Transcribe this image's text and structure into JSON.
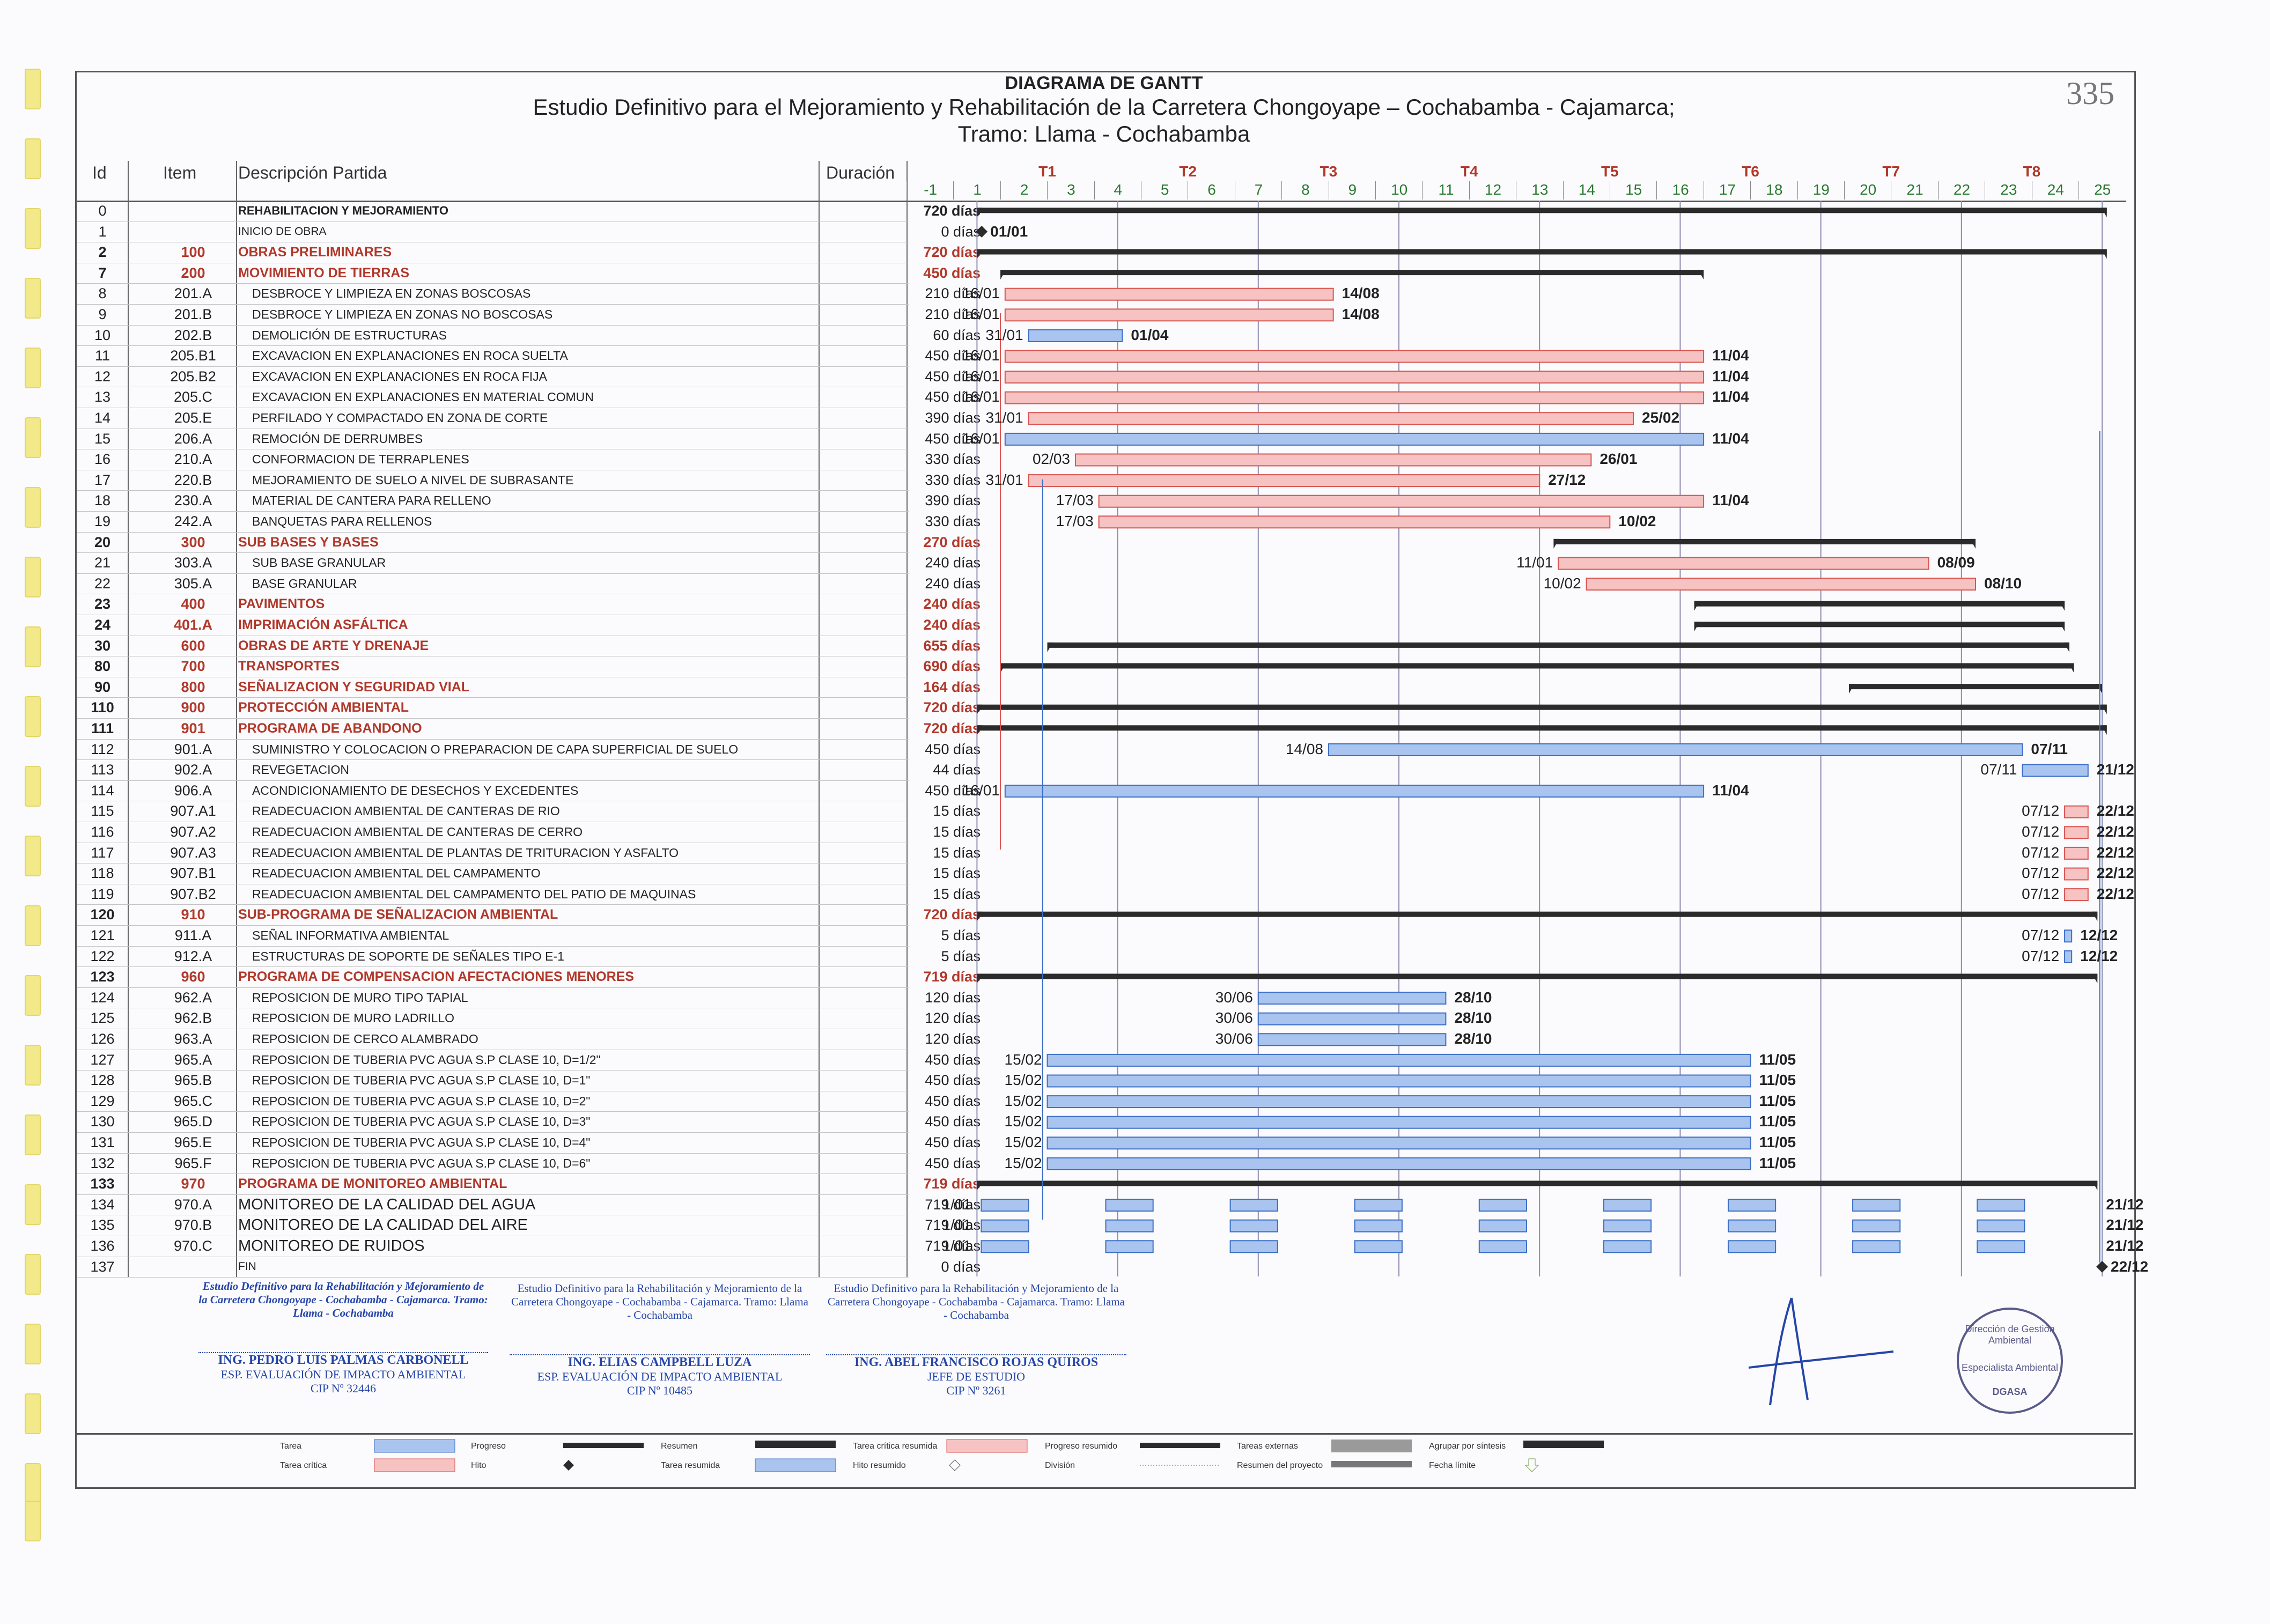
{
  "header": {
    "title": "DIAGRAMA DE GANTT",
    "subtitle": "Estudio Definitivo para el Mejoramiento y Rehabilitación de la Carretera Chongoyape – Cochabamba - Cajamarca;",
    "tramo": "Tramo: Llama - Cochabamba",
    "page_number": "335"
  },
  "columns": {
    "id": "Id",
    "item": "Item",
    "desc": "Descripción Partida",
    "dur": "Duración"
  },
  "quarters": [
    "T1",
    "T2",
    "T3",
    "T4",
    "T5",
    "T6",
    "T7",
    "T8"
  ],
  "months": [
    "-1",
    "1",
    "2",
    "3",
    "4",
    "5",
    "6",
    "7",
    "8",
    "9",
    "10",
    "11",
    "12",
    "13",
    "14",
    "15",
    "16",
    "17",
    "18",
    "19",
    "20",
    "21",
    "22",
    "23",
    "24",
    "25"
  ],
  "rows": [
    {
      "id": "0",
      "item": "",
      "desc": "REHABILITACION Y MEJORAMIENTO",
      "dur": "720 días",
      "kind": "phase"
    },
    {
      "id": "1",
      "item": "",
      "desc": "INICIO DE OBRA",
      "dur": "0 días",
      "kind": "small"
    },
    {
      "id": "2",
      "item": "100",
      "desc": "OBRAS PRELIMINARES",
      "dur": "720 días",
      "kind": "sum"
    },
    {
      "id": "7",
      "item": "200",
      "desc": "MOVIMIENTO DE TIERRAS",
      "dur": "450 días",
      "kind": "sum"
    },
    {
      "id": "8",
      "item": "201.A",
      "desc": "DESBROCE Y LIMPIEZA EN ZONAS BOSCOSAS",
      "dur": "210 días",
      "kind": "task"
    },
    {
      "id": "9",
      "item": "201.B",
      "desc": "DESBROCE Y LIMPIEZA EN ZONAS NO BOSCOSAS",
      "dur": "210 días",
      "kind": "task"
    },
    {
      "id": "10",
      "item": "202.B",
      "desc": "DEMOLICIÓN DE ESTRUCTURAS",
      "dur": "60 días",
      "kind": "task"
    },
    {
      "id": "11",
      "item": "205.B1",
      "desc": "EXCAVACION EN EXPLANACIONES EN ROCA SUELTA",
      "dur": "450 días",
      "kind": "task"
    },
    {
      "id": "12",
      "item": "205.B2",
      "desc": "EXCAVACION EN EXPLANACIONES EN ROCA FIJA",
      "dur": "450 días",
      "kind": "task"
    },
    {
      "id": "13",
      "item": "205.C",
      "desc": "EXCAVACION EN EXPLANACIONES EN MATERIAL COMUN",
      "dur": "450 días",
      "kind": "task"
    },
    {
      "id": "14",
      "item": "205.E",
      "desc": "PERFILADO Y COMPACTADO EN ZONA DE CORTE",
      "dur": "390 días",
      "kind": "task"
    },
    {
      "id": "15",
      "item": "206.A",
      "desc": "REMOCIÓN DE DERRUMBES",
      "dur": "450 días",
      "kind": "task"
    },
    {
      "id": "16",
      "item": "210.A",
      "desc": "CONFORMACION DE TERRAPLENES",
      "dur": "330 días",
      "kind": "task"
    },
    {
      "id": "17",
      "item": "220.B",
      "desc": "MEJORAMIENTO DE SUELO A NIVEL DE SUBRASANTE",
      "dur": "330 días",
      "kind": "task"
    },
    {
      "id": "18",
      "item": "230.A",
      "desc": "MATERIAL DE CANTERA PARA RELLENO",
      "dur": "390 días",
      "kind": "task"
    },
    {
      "id": "19",
      "item": "242.A",
      "desc": "BANQUETAS PARA RELLENOS",
      "dur": "330 días",
      "kind": "task"
    },
    {
      "id": "20",
      "item": "300",
      "desc": "SUB BASES Y BASES",
      "dur": "270 días",
      "kind": "sum"
    },
    {
      "id": "21",
      "item": "303.A",
      "desc": "SUB BASE GRANULAR",
      "dur": "240 días",
      "kind": "task"
    },
    {
      "id": "22",
      "item": "305.A",
      "desc": "BASE GRANULAR",
      "dur": "240 días",
      "kind": "task"
    },
    {
      "id": "23",
      "item": "400",
      "desc": "PAVIMENTOS",
      "dur": "240 días",
      "kind": "sum"
    },
    {
      "id": "24",
      "item": "401.A",
      "desc": "IMPRIMACIÓN ASFÁLTICA",
      "dur": "240 días",
      "kind": "sum"
    },
    {
      "id": "30",
      "item": "600",
      "desc": "OBRAS DE ARTE Y DRENAJE",
      "dur": "655 días",
      "kind": "sum"
    },
    {
      "id": "80",
      "item": "700",
      "desc": "TRANSPORTES",
      "dur": "690 días",
      "kind": "sum"
    },
    {
      "id": "90",
      "item": "800",
      "desc": "SEÑALIZACION Y SEGURIDAD VIAL",
      "dur": "164 días",
      "kind": "sum"
    },
    {
      "id": "110",
      "item": "900",
      "desc": "PROTECCIÓN AMBIENTAL",
      "dur": "720 días",
      "kind": "sum"
    },
    {
      "id": "111",
      "item": "901",
      "desc": "PROGRAMA DE ABANDONO",
      "dur": "720 días",
      "kind": "sum"
    },
    {
      "id": "112",
      "item": "901.A",
      "desc": "SUMINISTRO Y COLOCACION O PREPARACION DE CAPA SUPERFICIAL DE SUELO",
      "dur": "450 días",
      "kind": "task"
    },
    {
      "id": "113",
      "item": "902.A",
      "desc": "REVEGETACION",
      "dur": "44 días",
      "kind": "task"
    },
    {
      "id": "114",
      "item": "906.A",
      "desc": "ACONDICIONAMIENTO DE DESECHOS Y EXCEDENTES",
      "dur": "450 días",
      "kind": "task"
    },
    {
      "id": "115",
      "item": "907.A1",
      "desc": "READECUACION AMBIENTAL DE CANTERAS DE RIO",
      "dur": "15 días",
      "kind": "task"
    },
    {
      "id": "116",
      "item": "907.A2",
      "desc": "READECUACION AMBIENTAL DE CANTERAS DE CERRO",
      "dur": "15 días",
      "kind": "task"
    },
    {
      "id": "117",
      "item": "907.A3",
      "desc": "READECUACION AMBIENTAL DE PLANTAS DE TRITURACION Y ASFALTO",
      "dur": "15 días",
      "kind": "task"
    },
    {
      "id": "118",
      "item": "907.B1",
      "desc": "READECUACION AMBIENTAL DEL CAMPAMENTO",
      "dur": "15 días",
      "kind": "task"
    },
    {
      "id": "119",
      "item": "907.B2",
      "desc": "READECUACION AMBIENTAL DEL CAMPAMENTO DEL PATIO DE MAQUINAS",
      "dur": "15 días",
      "kind": "task"
    },
    {
      "id": "120",
      "item": "910",
      "desc": "SUB-PROGRAMA DE SEÑALIZACION AMBIENTAL",
      "dur": "720 días",
      "kind": "sum"
    },
    {
      "id": "121",
      "item": "911.A",
      "desc": "SEÑAL INFORMATIVA AMBIENTAL",
      "dur": "5 días",
      "kind": "task"
    },
    {
      "id": "122",
      "item": "912.A",
      "desc": "ESTRUCTURAS DE SOPORTE DE SEÑALES TIPO E-1",
      "dur": "5 días",
      "kind": "task"
    },
    {
      "id": "123",
      "item": "960",
      "desc": "PROGRAMA DE COMPENSACION AFECTACIONES MENORES",
      "dur": "719 días",
      "kind": "sum"
    },
    {
      "id": "124",
      "item": "962.A",
      "desc": "REPOSICION DE MURO TIPO TAPIAL",
      "dur": "120 días",
      "kind": "task"
    },
    {
      "id": "125",
      "item": "962.B",
      "desc": "REPOSICION DE MURO LADRILLO",
      "dur": "120 días",
      "kind": "task"
    },
    {
      "id": "126",
      "item": "963.A",
      "desc": "REPOSICION DE CERCO ALAMBRADO",
      "dur": "120 días",
      "kind": "task"
    },
    {
      "id": "127",
      "item": "965.A",
      "desc": "REPOSICION DE TUBERIA PVC AGUA S.P CLASE 10, D=1/2\"",
      "dur": "450 días",
      "kind": "task"
    },
    {
      "id": "128",
      "item": "965.B",
      "desc": "REPOSICION DE TUBERIA PVC AGUA S.P CLASE 10, D=1\"",
      "dur": "450 días",
      "kind": "task"
    },
    {
      "id": "129",
      "item": "965.C",
      "desc": "REPOSICION DE TUBERIA PVC AGUA S.P CLASE 10, D=2\"",
      "dur": "450 días",
      "kind": "task"
    },
    {
      "id": "130",
      "item": "965.D",
      "desc": "REPOSICION DE TUBERIA PVC AGUA S.P CLASE 10, D=3\"",
      "dur": "450 días",
      "kind": "task"
    },
    {
      "id": "131",
      "item": "965.E",
      "desc": "REPOSICION DE TUBERIA PVC AGUA S.P CLASE 10, D=4\"",
      "dur": "450 días",
      "kind": "task"
    },
    {
      "id": "132",
      "item": "965.F",
      "desc": "REPOSICION DE TUBERIA PVC AGUA S.P CLASE 10, D=6\"",
      "dur": "450 días",
      "kind": "task"
    },
    {
      "id": "133",
      "item": "970",
      "desc": "PROGRAMA DE MONITOREO AMBIENTAL",
      "dur": "719 días",
      "kind": "sum"
    },
    {
      "id": "134",
      "item": "970.A",
      "desc": "MONITOREO DE LA CALIDAD DEL AGUA",
      "dur": "719 días",
      "kind": "big"
    },
    {
      "id": "135",
      "item": "970.B",
      "desc": "MONITOREO DE LA CALIDAD DEL AIRE",
      "dur": "719 días",
      "kind": "big"
    },
    {
      "id": "136",
      "item": "970.C",
      "desc": "MONITOREO DE RUIDOS",
      "dur": "719 días",
      "kind": "big"
    },
    {
      "id": "137",
      "item": "",
      "desc": "FIN",
      "dur": "0 días",
      "kind": "small"
    }
  ],
  "bars": [
    {
      "row": 0,
      "type": "summary",
      "start": 0,
      "end": 24.1
    },
    {
      "row": 1,
      "type": "milestone",
      "start": 0.1,
      "after": "01/01"
    },
    {
      "row": 2,
      "type": "summary",
      "start": 0,
      "end": 24.1
    },
    {
      "row": 3,
      "type": "summary",
      "start": 0.5,
      "end": 15.5
    },
    {
      "row": 4,
      "type": "crit",
      "start": 0.6,
      "end": 7.6,
      "before": "16/01",
      "after": "14/08"
    },
    {
      "row": 5,
      "type": "crit",
      "start": 0.6,
      "end": 7.6,
      "before": "16/01",
      "after": "14/08"
    },
    {
      "row": 6,
      "type": "task",
      "start": 1.1,
      "end": 3.1,
      "before": "31/01",
      "after": "01/04"
    },
    {
      "row": 7,
      "type": "crit",
      "start": 0.6,
      "end": 15.5,
      "before": "16/01",
      "after": "11/04"
    },
    {
      "row": 8,
      "type": "crit",
      "start": 0.6,
      "end": 15.5,
      "before": "16/01",
      "after": "11/04"
    },
    {
      "row": 9,
      "type": "crit",
      "start": 0.6,
      "end": 15.5,
      "before": "16/01",
      "after": "11/04"
    },
    {
      "row": 10,
      "type": "crit",
      "start": 1.1,
      "end": 14.0,
      "before": "31/01",
      "after": "25/02"
    },
    {
      "row": 11,
      "type": "task",
      "start": 0.6,
      "end": 15.5,
      "before": "16/01",
      "after": "11/04"
    },
    {
      "row": 12,
      "type": "crit",
      "start": 2.1,
      "end": 13.1,
      "before": "02/03",
      "after": "26/01"
    },
    {
      "row": 13,
      "type": "crit",
      "start": 1.1,
      "end": 12.0,
      "before": "31/01",
      "after": "27/12"
    },
    {
      "row": 14,
      "type": "crit",
      "start": 2.6,
      "end": 15.5,
      "before": "17/03",
      "after": "11/04"
    },
    {
      "row": 15,
      "type": "crit",
      "start": 2.6,
      "end": 13.5,
      "before": "17/03",
      "after": "10/02"
    },
    {
      "row": 16,
      "type": "summary",
      "start": 12.3,
      "end": 21.3
    },
    {
      "row": 17,
      "type": "crit",
      "start": 12.4,
      "end": 20.3,
      "before": "11/01",
      "after": "08/09"
    },
    {
      "row": 18,
      "type": "crit",
      "start": 13.0,
      "end": 21.3,
      "before": "10/02",
      "after": "08/10"
    },
    {
      "row": 19,
      "type": "summary",
      "start": 15.3,
      "end": 23.2
    },
    {
      "row": 20,
      "type": "summary",
      "start": 15.3,
      "end": 23.2
    },
    {
      "row": 21,
      "type": "summary",
      "start": 1.5,
      "end": 23.3
    },
    {
      "row": 22,
      "type": "summary",
      "start": 0.5,
      "end": 23.4
    },
    {
      "row": 23,
      "type": "summary",
      "start": 18.6,
      "end": 24.0
    },
    {
      "row": 24,
      "type": "summary",
      "start": 0,
      "end": 24.1
    },
    {
      "row": 25,
      "type": "summary",
      "start": 0,
      "end": 24.1
    },
    {
      "row": 26,
      "type": "task",
      "start": 7.5,
      "end": 22.3,
      "before": "14/08",
      "after": "07/11"
    },
    {
      "row": 27,
      "type": "task",
      "start": 22.3,
      "end": 23.7,
      "before": "07/11",
      "after": "21/12"
    },
    {
      "row": 28,
      "type": "task",
      "start": 0.6,
      "end": 15.5,
      "before": "16/01",
      "after": "11/04"
    },
    {
      "row": 29,
      "type": "crit",
      "start": 23.2,
      "end": 23.7,
      "before": "07/12",
      "after": "22/12"
    },
    {
      "row": 30,
      "type": "crit",
      "start": 23.2,
      "end": 23.7,
      "before": "07/12",
      "after": "22/12"
    },
    {
      "row": 31,
      "type": "crit",
      "start": 23.2,
      "end": 23.7,
      "before": "07/12",
      "after": "22/12"
    },
    {
      "row": 32,
      "type": "crit",
      "start": 23.2,
      "end": 23.7,
      "before": "07/12",
      "after": "22/12"
    },
    {
      "row": 33,
      "type": "crit",
      "start": 23.2,
      "end": 23.7,
      "before": "07/12",
      "after": "22/12"
    },
    {
      "row": 34,
      "type": "summary",
      "start": 0,
      "end": 23.9
    },
    {
      "row": 35,
      "type": "task",
      "start": 23.2,
      "end": 23.35,
      "before": "07/12",
      "after": "12/12"
    },
    {
      "row": 36,
      "type": "task",
      "start": 23.2,
      "end": 23.35,
      "before": "07/12",
      "after": "12/12"
    },
    {
      "row": 37,
      "type": "summary",
      "start": 0,
      "end": 23.9
    },
    {
      "row": 38,
      "type": "task",
      "start": 6.0,
      "end": 10.0,
      "before": "30/06",
      "after": "28/10"
    },
    {
      "row": 39,
      "type": "task",
      "start": 6.0,
      "end": 10.0,
      "before": "30/06",
      "after": "28/10"
    },
    {
      "row": 40,
      "type": "task",
      "start": 6.0,
      "end": 10.0,
      "before": "30/06",
      "after": "28/10"
    },
    {
      "row": 41,
      "type": "task",
      "start": 1.5,
      "end": 16.5,
      "before": "15/02",
      "after": "11/05"
    },
    {
      "row": 42,
      "type": "task",
      "start": 1.5,
      "end": 16.5,
      "before": "15/02",
      "after": "11/05"
    },
    {
      "row": 43,
      "type": "task",
      "start": 1.5,
      "end": 16.5,
      "before": "15/02",
      "after": "11/05"
    },
    {
      "row": 44,
      "type": "task",
      "start": 1.5,
      "end": 16.5,
      "before": "15/02",
      "after": "11/05"
    },
    {
      "row": 45,
      "type": "task",
      "start": 1.5,
      "end": 16.5,
      "before": "15/02",
      "after": "11/05"
    },
    {
      "row": 46,
      "type": "task",
      "start": 1.5,
      "end": 16.5,
      "before": "15/02",
      "after": "11/05"
    },
    {
      "row": 47,
      "type": "summary",
      "start": 0,
      "end": 23.9
    },
    {
      "row": 48,
      "type": "split",
      "start": 0,
      "end": 23.9,
      "before": "1/01",
      "after": "21/12"
    },
    {
      "row": 49,
      "type": "split",
      "start": 0,
      "end": 23.9,
      "before": "1/01",
      "after": "21/12"
    },
    {
      "row": 50,
      "type": "split",
      "start": 0,
      "end": 23.9,
      "before": "1/01",
      "after": "21/12"
    },
    {
      "row": 51,
      "type": "milestone",
      "start": 24.0,
      "after": "22/12"
    }
  ],
  "signatures": [
    {
      "block": "Estudio Definitivo para la Rehabilitación y Mejoramiento de la Carretera Chongoyape - Cochabamba - Cajamarca. Tramo: Llama - Cochabamba",
      "name": "ING. PEDRO LUIS PALMAS CARBONELL",
      "role": "ESP. EVALUACIÓN DE IMPACTO AMBIENTAL",
      "cip": "CIP Nº 32446"
    },
    {
      "block": "Estudio Definitivo para la Rehabilitación y Mejoramiento de la Carretera Chongoyape - Cochabamba - Cajamarca. Tramo: Llama - Cochabamba",
      "name": "ING. ELIAS CAMPBELL LUZA",
      "role": "ESP. EVALUACIÓN DE IMPACTO AMBIENTAL",
      "cip": "CIP Nº 10485"
    },
    {
      "block": "Estudio Definitivo para la Rehabilitación y Mejoramiento de la Carretera Chongoyape - Cochabamba - Cajamarca. Tramo: Llama - Cochabamba",
      "name": "ING. ABEL FRANCISCO ROJAS QUIROS",
      "role": "JEFE DE ESTUDIO",
      "cip": "CIP Nº 3261"
    }
  ],
  "stamp": {
    "text": "Dirección de Gestión Ambiental",
    "inner": "Especialista Ambiental",
    "bottom": "DGASA"
  },
  "legend": [
    "Tarea",
    "Progreso",
    "Resumen",
    "Tarea crítica resumida",
    "Progreso resumido",
    "Tareas externas",
    "Agrupar por síntesis",
    "Tarea crítica",
    "Hito",
    "Tarea resumida",
    "Hito resumido",
    "División",
    "Resumen del proyecto",
    "Fecha límite"
  ],
  "colors": {
    "crit_fill": "#f6c2c2",
    "crit_stroke": "#d9534f",
    "task_fill": "#a9c4ee",
    "task_stroke": "#3b6fc6",
    "summary": "#2b2b2b",
    "header_red": "#b1382a",
    "month_green": "#2a7a30"
  }
}
